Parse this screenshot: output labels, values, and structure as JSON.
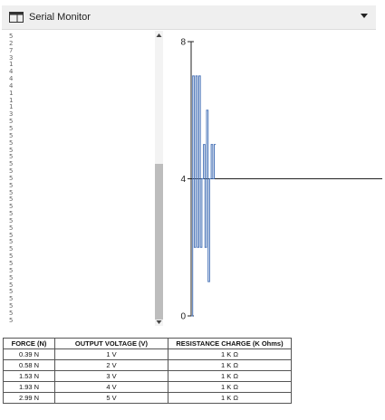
{
  "header": {
    "title": "Serial Monitor",
    "icon": "window-icon",
    "menu_icon": "dropdown-arrow-icon"
  },
  "monitor_lines": [
    "5",
    "2",
    "7",
    "3",
    "1",
    "4",
    "4",
    "4",
    "1",
    "1",
    "1",
    "3",
    "5",
    "5",
    "5",
    "5",
    "5",
    "5",
    "5",
    "5",
    "5",
    "5",
    "5",
    "5",
    "5",
    "5",
    "5",
    "5",
    "5",
    "5",
    "5",
    "5",
    "5",
    "5",
    "5",
    "5",
    "5",
    "5",
    "5",
    "5",
    "5"
  ],
  "chart_data": {
    "type": "line",
    "y_ticks": [
      "8",
      "4",
      "0"
    ],
    "ylim": [
      0,
      8
    ],
    "reference_line_y": 4,
    "series": [
      {
        "color": "#4a74b8",
        "x": [
          0,
          1,
          1,
          2,
          2,
          3,
          3,
          4,
          4,
          5,
          5,
          6,
          6,
          7,
          7,
          8,
          8,
          9,
          9,
          10,
          10,
          11,
          11,
          12,
          12,
          13,
          13,
          14,
          14,
          15,
          15,
          16
        ],
        "y": [
          0,
          0,
          7,
          7,
          2,
          2,
          7,
          7,
          2,
          2,
          7,
          7,
          2,
          2,
          4,
          4,
          5,
          5,
          2,
          2,
          6,
          6,
          1,
          1,
          4,
          4,
          5,
          5,
          4,
          4,
          5,
          5
        ]
      }
    ],
    "grid": false
  },
  "table": {
    "headers": [
      "FORCE (N)",
      "OUTPUT VOLTAGE (V)",
      "RESISTANCE CHARGE (K Ohms)"
    ],
    "rows": [
      [
        "0.39 N",
        "1 V",
        "1 K Ω"
      ],
      [
        "0.58 N",
        "2 V",
        "1 K Ω"
      ],
      [
        "1.53 N",
        "3 V",
        "1 K Ω"
      ],
      [
        "1.93 N",
        "4 V",
        "1 K Ω"
      ],
      [
        "2.99 N",
        "5 V",
        "1 K Ω"
      ]
    ]
  }
}
